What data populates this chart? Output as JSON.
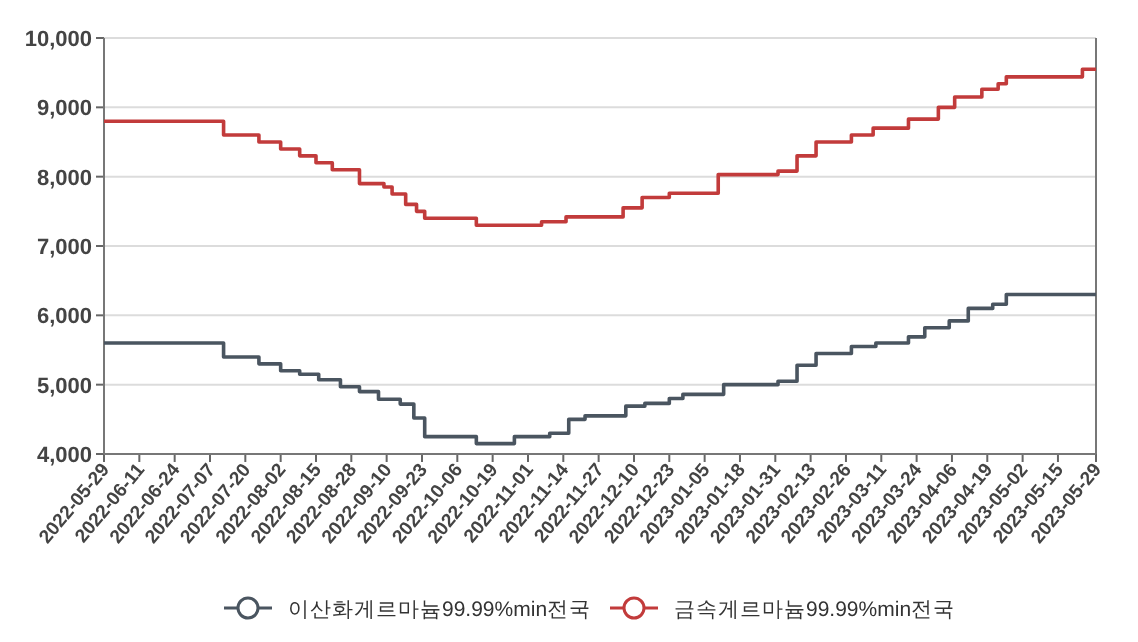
{
  "chart_data": {
    "type": "step",
    "legend": "bottom",
    "grid": "y",
    "marker": "none",
    "line_style": "solid",
    "xlim": [
      "2022-05-29",
      "2023-05-29"
    ],
    "xticks": [
      "2022-05-29",
      "2022-06-11",
      "2022-06-24",
      "2022-07-07",
      "2022-07-20",
      "2022-08-02",
      "2022-08-15",
      "2022-08-28",
      "2022-09-10",
      "2022-09-23",
      "2022-10-06",
      "2022-10-19",
      "2022-11-01",
      "2022-11-14",
      "2022-11-27",
      "2022-12-10",
      "2022-12-23",
      "2023-01-05",
      "2023-01-18",
      "2023-01-31",
      "2023-02-13",
      "2023-02-26",
      "2023-03-11",
      "2023-03-24",
      "2023-04-06",
      "2023-04-19",
      "2023-05-02",
      "2023-05-15",
      "2023-05-29"
    ],
    "ylim": [
      4000,
      10000
    ],
    "yticks": [
      {
        "value": 4000,
        "label": "4,000"
      },
      {
        "value": 5000,
        "label": "5,000"
      },
      {
        "value": 6000,
        "label": "6,000"
      },
      {
        "value": 7000,
        "label": "7,000"
      },
      {
        "value": 8000,
        "label": "8,000"
      },
      {
        "value": 9000,
        "label": "9,000"
      },
      {
        "value": 10000,
        "label": "10,000"
      }
    ],
    "series": [
      {
        "name": "이산화게르마늄99.99%min전국",
        "color": "#4a5560",
        "x": [
          "2022-05-29",
          "2022-07-12",
          "2022-07-25",
          "2022-08-02",
          "2022-08-09",
          "2022-08-16",
          "2022-08-24",
          "2022-08-31",
          "2022-09-07",
          "2022-09-15",
          "2022-09-20",
          "2022-09-24",
          "2022-10-13",
          "2022-10-27",
          "2022-11-09",
          "2022-11-16",
          "2022-11-22",
          "2022-12-07",
          "2022-12-14",
          "2022-12-23",
          "2022-12-28",
          "2023-01-12",
          "2023-02-01",
          "2023-02-08",
          "2023-02-15",
          "2023-02-28",
          "2023-03-09",
          "2023-03-21",
          "2023-03-27",
          "2023-04-05",
          "2023-04-12",
          "2023-04-21",
          "2023-04-26",
          "2023-05-29"
        ],
        "values": [
          5600,
          5400,
          5300,
          5200,
          5150,
          5070,
          4970,
          4900,
          4790,
          4720,
          4520,
          4250,
          4150,
          4250,
          4300,
          4500,
          4550,
          4690,
          4730,
          4800,
          4860,
          5000,
          5050,
          5280,
          5450,
          5550,
          5600,
          5690,
          5820,
          5920,
          6100,
          6160,
          6300,
          6300
        ]
      },
      {
        "name": "금속게르마늄99.99%min전국",
        "color": "#c23b3b",
        "x": [
          "2022-05-29",
          "2022-07-12",
          "2022-07-25",
          "2022-08-02",
          "2022-08-09",
          "2022-08-15",
          "2022-08-21",
          "2022-08-31",
          "2022-09-09",
          "2022-09-12",
          "2022-09-17",
          "2022-09-21",
          "2022-09-24",
          "2022-10-13",
          "2022-11-06",
          "2022-11-15",
          "2022-12-06",
          "2022-12-13",
          "2022-12-23",
          "2023-01-10",
          "2023-02-01",
          "2023-02-08",
          "2023-02-15",
          "2023-02-28",
          "2023-03-08",
          "2023-03-21",
          "2023-04-01",
          "2023-04-07",
          "2023-04-17",
          "2023-04-23",
          "2023-04-26",
          "2023-05-24",
          "2023-05-29"
        ],
        "values": [
          8800,
          8600,
          8500,
          8400,
          8300,
          8200,
          8100,
          7900,
          7850,
          7750,
          7600,
          7500,
          7400,
          7300,
          7350,
          7420,
          7550,
          7700,
          7760,
          8030,
          8080,
          8300,
          8500,
          8600,
          8700,
          8830,
          9000,
          9150,
          9260,
          9340,
          9440,
          9550,
          9550
        ]
      }
    ]
  }
}
